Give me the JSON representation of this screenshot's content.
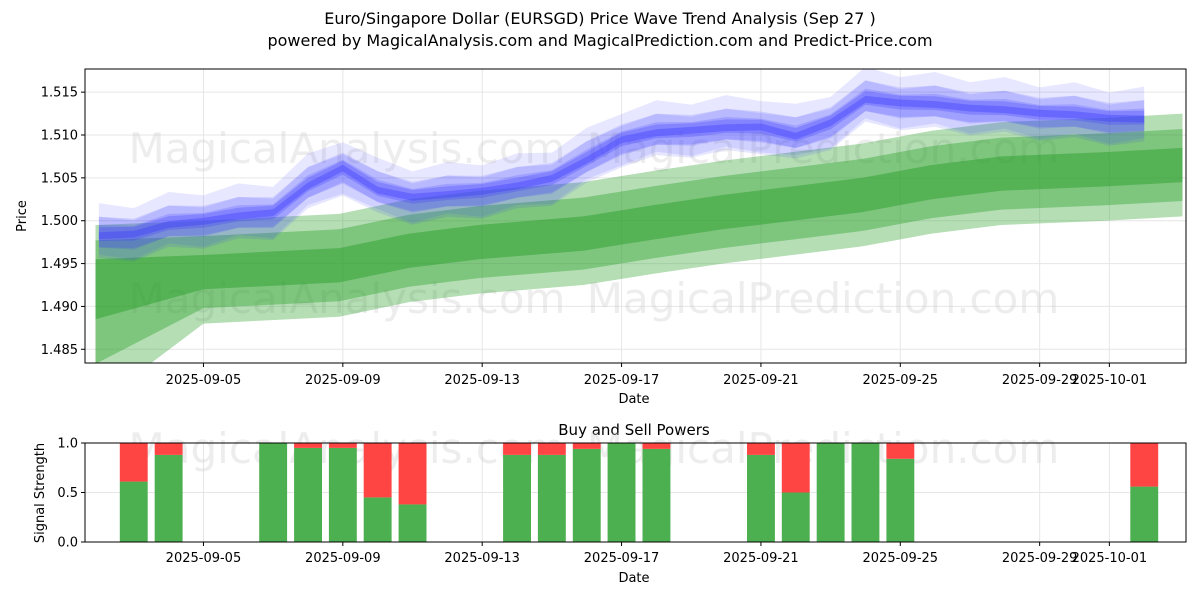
{
  "chart_data": [
    {
      "type": "area",
      "title": "Euro/Singapore Dollar (EURSGD) Price Wave Trend Analysis (Sep 27 )",
      "subtitle": "powered by MagicalAnalysis.com and MagicalPrediction.com and Predict-Price.com",
      "xlabel": "Date",
      "ylabel": "Price",
      "x_ticks": [
        "2025-09-05",
        "2025-09-09",
        "2025-09-13",
        "2025-09-17",
        "2025-09-21",
        "2025-09-25",
        "2025-09-29",
        "2025-10-01"
      ],
      "x_tick_days": [
        4,
        8,
        12,
        16,
        20,
        24,
        28,
        30
      ],
      "xlim_days": [
        0.6,
        32.2
      ],
      "y_ticks": [
        1.485,
        1.49,
        1.495,
        1.5,
        1.505,
        1.51,
        1.515
      ],
      "ylim": [
        1.4834,
        1.5177
      ],
      "grid": true,
      "watermarks": [
        "MagicalAnalysis.com",
        "MagicalPrediction.com",
        "MagicalAnalysis.com",
        "MagicalPrediction.com"
      ],
      "series": [
        {
          "name": "Predicted Price Wave (blue)",
          "color": "#3333ff",
          "x_days": [
            1,
            2,
            3,
            4,
            5,
            6,
            7,
            8,
            9,
            10,
            11,
            12,
            13,
            14,
            15,
            16,
            17,
            18,
            19,
            20,
            21,
            22,
            23,
            24,
            25,
            26,
            27,
            28,
            29,
            30,
            31
          ],
          "values": [
            1.4982,
            1.4985,
            1.4995,
            1.5,
            1.5005,
            1.501,
            1.504,
            1.5062,
            1.5035,
            1.5028,
            1.503,
            1.5035,
            1.504,
            1.505,
            1.507,
            1.5095,
            1.5102,
            1.5106,
            1.5108,
            1.511,
            1.5098,
            1.5115,
            1.5141,
            1.5138,
            1.5135,
            1.5132,
            1.5129,
            1.5126,
            1.5123,
            1.512,
            1.5118
          ]
        },
        {
          "name": "Trend Band (green)",
          "color": "#2ca02c",
          "x_days": [
            0.9,
            4,
            7.9,
            9.9,
            11.9,
            14.9,
            16.9,
            18.9,
            20.9,
            22.9,
            24.9,
            26.9,
            29.9,
            32.1
          ],
          "values": [
            1.4935,
            1.494,
            1.4948,
            1.4965,
            1.4975,
            1.4985,
            1.4998,
            1.501,
            1.502,
            1.503,
            1.5045,
            1.5055,
            1.506,
            1.5065
          ]
        }
      ]
    },
    {
      "type": "bar",
      "title": "Buy and Sell Powers",
      "xlabel": "Date",
      "ylabel": "Signal Strength",
      "x_ticks": [
        "2025-09-05",
        "2025-09-09",
        "2025-09-13",
        "2025-09-17",
        "2025-09-21",
        "2025-09-25",
        "2025-09-29",
        "2025-10-01"
      ],
      "x_tick_days": [
        4,
        8,
        12,
        16,
        20,
        24,
        28,
        30
      ],
      "xlim_days": [
        0.6,
        32.2
      ],
      "y_ticks": [
        "0.0",
        "0.5",
        "1.0"
      ],
      "ylim": [
        0,
        1
      ],
      "grid": true,
      "watermarks": [
        "MagicalAnalysis.com",
        "MagicalPrediction.com"
      ],
      "series": [
        {
          "name": "Buy",
          "color": "#4caf50",
          "x_days": [
            2,
            3,
            6,
            7,
            8,
            9,
            10,
            13,
            14,
            15,
            16,
            17,
            20,
            21,
            22,
            23,
            24,
            31
          ],
          "values": [
            0.61,
            0.88,
            1.0,
            0.95,
            0.95,
            0.45,
            0.38,
            0.88,
            0.88,
            0.94,
            1.0,
            0.94,
            0.88,
            0.5,
            1.0,
            1.0,
            0.84,
            0.56
          ]
        },
        {
          "name": "Sell",
          "color": "#ff4444",
          "x_days": [
            2,
            3,
            6,
            7,
            8,
            9,
            10,
            13,
            14,
            15,
            16,
            17,
            20,
            21,
            22,
            23,
            24,
            31
          ],
          "values": [
            0.39,
            0.12,
            0.0,
            0.05,
            0.05,
            0.55,
            0.62,
            0.12,
            0.12,
            0.06,
            0.0,
            0.06,
            0.12,
            0.5,
            0.0,
            0.0,
            0.16,
            0.44
          ]
        }
      ]
    }
  ]
}
